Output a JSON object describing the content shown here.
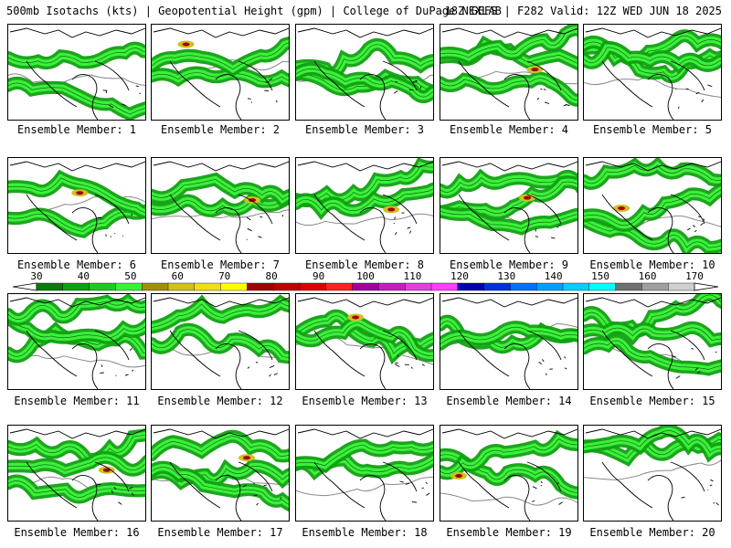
{
  "header": {
    "left": "500mb Isotachs (kts) | Geopotential Height (gpm) | College of DuPage NEXLAB",
    "right": "18Z GEFS | F282 Valid: 12Z WED JUN 18 2025"
  },
  "panels": [
    {
      "label": "Ensemble Member: 1"
    },
    {
      "label": "Ensemble Member: 2"
    },
    {
      "label": "Ensemble Member: 3"
    },
    {
      "label": "Ensemble Member: 4"
    },
    {
      "label": "Ensemble Member: 5"
    },
    {
      "label": "Ensemble Member: 6"
    },
    {
      "label": "Ensemble Member: 7"
    },
    {
      "label": "Ensemble Member: 8"
    },
    {
      "label": "Ensemble Member: 9"
    },
    {
      "label": "Ensemble Member: 10"
    },
    {
      "label": "Ensemble Member: 11"
    },
    {
      "label": "Ensemble Member: 12"
    },
    {
      "label": "Ensemble Member: 13"
    },
    {
      "label": "Ensemble Member: 14"
    },
    {
      "label": "Ensemble Member: 15"
    },
    {
      "label": "Ensemble Member: 16"
    },
    {
      "label": "Ensemble Member: 17"
    },
    {
      "label": "Ensemble Member: 18"
    },
    {
      "label": "Ensemble Member: 19"
    },
    {
      "label": "Ensemble Member: 20"
    }
  ],
  "colorbar": {
    "labels": [
      "30",
      "40",
      "50",
      "60",
      "70",
      "80",
      "90",
      "100",
      "110",
      "120",
      "130",
      "140",
      "150",
      "160",
      "170"
    ],
    "colors": [
      "#0a7a0a",
      "#11a011",
      "#22c822",
      "#3cf03c",
      "#a09010",
      "#d0c020",
      "#f0e010",
      "#ffff00",
      "#a00000",
      "#c00000",
      "#e00000",
      "#ff2020",
      "#a000a0",
      "#c020c0",
      "#e040e0",
      "#ff40ff",
      "#0000b0",
      "#0030e0",
      "#0070ff",
      "#00a0ff",
      "#00d0ff",
      "#00ffff",
      "#707070",
      "#a0a0a0",
      "#d0d0d0"
    ]
  }
}
